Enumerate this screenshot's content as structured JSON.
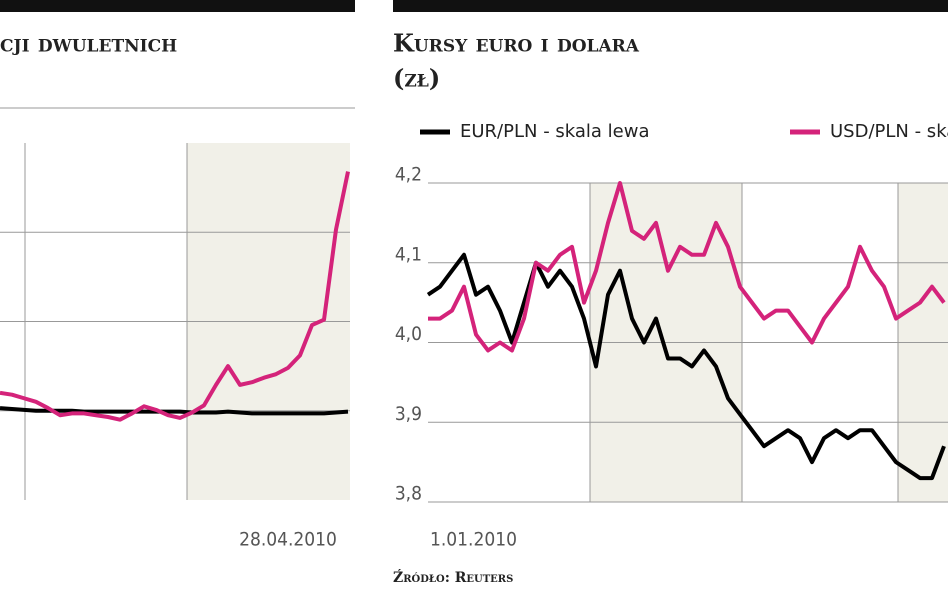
{
  "chart_data": [
    {
      "type": "line",
      "title": "cji dwuletnich",
      "categories": [
        null,
        null,
        null,
        null,
        null,
        null,
        null,
        null,
        null,
        null,
        null,
        null,
        null,
        null,
        null,
        null,
        null,
        null,
        null,
        null,
        null,
        null,
        null,
        null,
        "28.04.2010",
        null,
        null,
        null,
        null,
        null
      ],
      "series": [
        {
          "color": "#000000",
          "values": [
            1.03,
            1.02,
            1.01,
            1.0,
            1.0,
            1.0,
            1.0,
            0.99,
            0.99,
            0.99,
            0.99,
            0.99,
            0.99,
            0.99,
            0.99,
            0.99,
            0.98,
            0.98,
            0.98,
            0.99,
            0.98,
            0.97,
            0.97,
            0.97,
            0.97,
            0.97,
            0.97,
            0.97,
            0.98,
            0.99
          ]
        },
        {
          "color": "#d4237a",
          "values": [
            1.2,
            1.18,
            1.14,
            1.1,
            1.03,
            0.95,
            0.97,
            0.97,
            0.95,
            0.93,
            0.9,
            0.97,
            1.05,
            1.01,
            0.95,
            0.92,
            0.98,
            1.06,
            1.29,
            1.5,
            1.29,
            1.32,
            1.37,
            1.41,
            1.48,
            1.62,
            1.96,
            2.02,
            3.03,
            3.68
          ]
        }
      ],
      "ylim": [
        0,
        4
      ],
      "grid": true
    },
    {
      "type": "line",
      "title": "Kursy euro i dolara",
      "subtitle": "(zł)",
      "categories": [
        "1.01.2010",
        null,
        null,
        null,
        null,
        null,
        null,
        null,
        null,
        null,
        null,
        null,
        null,
        null,
        null,
        null,
        null,
        null,
        null,
        null,
        null,
        null,
        null,
        null,
        null,
        null,
        null,
        null,
        null,
        null,
        null,
        null,
        null,
        null,
        null,
        null,
        null,
        null,
        null,
        null,
        null,
        null,
        null,
        null
      ],
      "series": [
        {
          "name": "EUR/PLN - skala lewa",
          "color": "#000000",
          "values": [
            4.06,
            4.07,
            4.09,
            4.11,
            4.06,
            4.07,
            4.04,
            4.0,
            4.05,
            4.1,
            4.07,
            4.09,
            4.07,
            4.03,
            3.97,
            4.06,
            4.09,
            4.03,
            4.0,
            4.03,
            3.98,
            3.98,
            3.97,
            3.99,
            3.97,
            3.93,
            3.91,
            3.89,
            3.87,
            3.88,
            3.89,
            3.88,
            3.85,
            3.88,
            3.89,
            3.88,
            3.89,
            3.89,
            3.87,
            3.85,
            3.84,
            3.83,
            3.83,
            3.87
          ]
        },
        {
          "name": "USD/PLN - skala prawa",
          "color": "#d4237a",
          "values": [
            4.03,
            4.03,
            4.04,
            4.07,
            4.01,
            3.99,
            4.0,
            3.99,
            4.03,
            4.1,
            4.09,
            4.11,
            4.12,
            4.05,
            4.09,
            4.15,
            4.2,
            4.14,
            4.13,
            4.15,
            4.09,
            4.12,
            4.11,
            4.11,
            4.15,
            4.12,
            4.07,
            4.05,
            4.03,
            4.04,
            4.04,
            4.02,
            4.0,
            4.03,
            4.05,
            4.07,
            4.12,
            4.09,
            4.07,
            4.03,
            4.04,
            4.05,
            4.07,
            4.05
          ]
        }
      ],
      "ylim": [
        3.8,
        4.2
      ],
      "yticks": [
        {
          "value": 3.8,
          "label": "3,8"
        },
        {
          "value": 3.9,
          "label": "3,9"
        },
        {
          "value": 4.0,
          "label": "4,0"
        },
        {
          "value": 4.1,
          "label": "4,1"
        },
        {
          "value": 4.2,
          "label": "4,2"
        }
      ],
      "grid": true,
      "source": "Źródło: Reuters"
    }
  ]
}
